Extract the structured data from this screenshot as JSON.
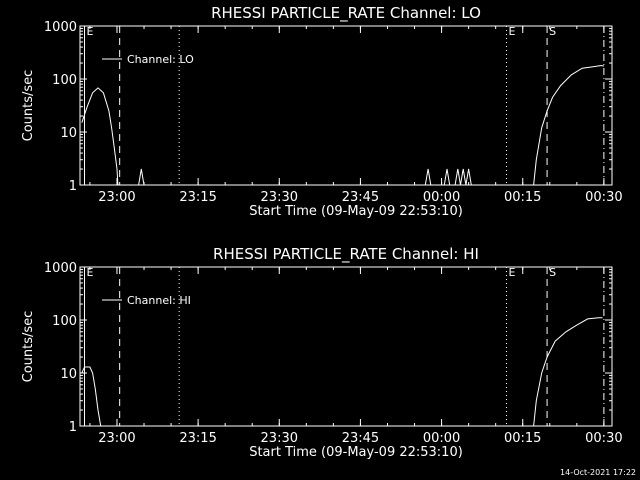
{
  "footer": {
    "timestamp": "14-Oct-2021 17:22"
  },
  "chart_data": [
    {
      "type": "line",
      "title": "RHESSI PARTICLE_RATE Channel: LO",
      "xlabel": "Start Time (09-May-09 22:53:10)",
      "ylabel": "Counts/sec",
      "yscale": "log",
      "ylim": [
        1,
        1000
      ],
      "xlim": [
        "22:53:10",
        "00:31:30"
      ],
      "xticks": [
        "23:00",
        "23:15",
        "23:30",
        "23:45",
        "00:00",
        "00:15",
        "00:30"
      ],
      "yticks": [
        "1",
        "10",
        "100",
        "1000"
      ],
      "legend": {
        "entries": [
          "Channel: LO"
        ],
        "placement": "top-left"
      },
      "markers": [
        {
          "label": "E",
          "time": "22:54:00",
          "style": "solid"
        },
        {
          "label": "",
          "time": "23:00:30",
          "style": "dashed"
        },
        {
          "label": "",
          "time": "23:11:30",
          "style": "dotted"
        },
        {
          "label": "E",
          "time": "00:12:00",
          "style": "dotted"
        },
        {
          "label": "S",
          "time": "00:19:30",
          "style": "dashed"
        },
        {
          "label": "",
          "time": "00:30:00",
          "style": "dash-dot"
        }
      ],
      "series": [
        {
          "name": "Channel: LO",
          "x": [
            "22:53:30",
            "22:54:30",
            "22:55:30",
            "22:56:30",
            "22:57:30",
            "22:58:30",
            "22:59:00",
            "22:59:30",
            "23:00:00",
            "23:00:10",
            "23:04:00",
            "23:04:30",
            "23:05:00",
            "23:57:00",
            "23:57:30",
            "23:58:00",
            "00:00:30",
            "00:01:00",
            "00:01:30",
            "00:02:30",
            "00:03:00",
            "00:03:30",
            "00:04:00",
            "00:04:30",
            "00:05:00",
            "00:05:30",
            "00:17:00",
            "00:17:30",
            "00:18:30",
            "00:19:30",
            "00:20:30",
            "00:22:00",
            "00:24:00",
            "00:26:00",
            "00:28:00",
            "00:29:30",
            "00:30:00"
          ],
          "y": [
            15,
            30,
            55,
            68,
            55,
            25,
            12,
            5,
            2,
            1,
            1,
            2,
            1,
            1,
            2,
            1,
            1,
            2,
            1,
            1,
            2,
            1,
            2,
            1,
            2,
            1,
            1,
            3,
            12,
            25,
            45,
            75,
            120,
            160,
            170,
            180,
            175
          ]
        }
      ]
    },
    {
      "type": "line",
      "title": "RHESSI PARTICLE_RATE Channel: HI",
      "xlabel": "Start Time (09-May-09 22:53:10)",
      "ylabel": "Counts/sec",
      "yscale": "log",
      "ylim": [
        1,
        1000
      ],
      "xlim": [
        "22:53:10",
        "00:31:30"
      ],
      "xticks": [
        "23:00",
        "23:15",
        "23:30",
        "23:45",
        "00:00",
        "00:15",
        "00:30"
      ],
      "yticks": [
        "1",
        "10",
        "100",
        "1000"
      ],
      "legend": {
        "entries": [
          "Channel: HI"
        ],
        "placement": "top-left"
      },
      "markers": [
        {
          "label": "E",
          "time": "22:54:00",
          "style": "solid"
        },
        {
          "label": "",
          "time": "23:00:30",
          "style": "dashed"
        },
        {
          "label": "",
          "time": "23:11:30",
          "style": "dotted"
        },
        {
          "label": "E",
          "time": "00:12:00",
          "style": "dotted"
        },
        {
          "label": "S",
          "time": "00:19:30",
          "style": "dashed"
        },
        {
          "label": "",
          "time": "00:30:00",
          "style": "dash-dot"
        }
      ],
      "series": [
        {
          "name": "Channel: HI",
          "x": [
            "22:53:30",
            "22:54:00",
            "22:55:00",
            "22:55:30",
            "22:56:00",
            "22:56:30",
            "22:57:00",
            "00:17:00",
            "00:17:30",
            "00:18:30",
            "00:19:30",
            "00:21:00",
            "00:23:00",
            "00:25:00",
            "00:27:00",
            "00:29:00",
            "00:29:45"
          ],
          "y": [
            10,
            13,
            13,
            10,
            5,
            2,
            1,
            1,
            3,
            10,
            20,
            40,
            60,
            80,
            105,
            110,
            110
          ]
        }
      ]
    }
  ]
}
